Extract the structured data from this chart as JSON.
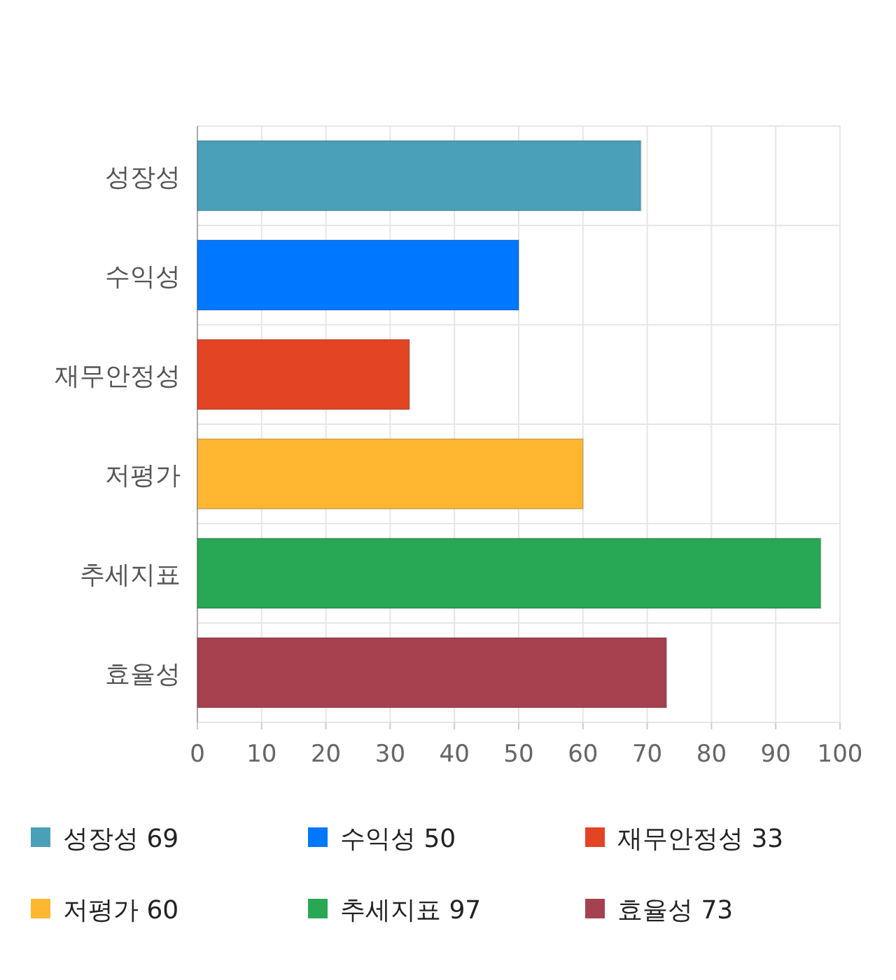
{
  "chart_data": {
    "type": "bar",
    "orientation": "horizontal",
    "categories": [
      "성장성",
      "수익성",
      "재무안정성",
      "저평가",
      "추세지표",
      "효율성"
    ],
    "series": [
      {
        "name": "성장성 69",
        "color": "#4aa0b9",
        "values": [
          69,
          null,
          null,
          null,
          null,
          null
        ]
      },
      {
        "name": "수익성 50",
        "color": "#0077ff",
        "values": [
          null,
          50,
          null,
          null,
          null,
          null
        ]
      },
      {
        "name": "재무안정성 33",
        "color": "#e24424",
        "values": [
          null,
          null,
          33,
          null,
          null,
          null
        ]
      },
      {
        "name": "저평가 60",
        "color": "#ffb732",
        "values": [
          null,
          null,
          null,
          60,
          null,
          null
        ]
      },
      {
        "name": "추세지표 97",
        "color": "#28a755",
        "values": [
          null,
          null,
          null,
          null,
          97,
          null
        ]
      },
      {
        "name": "효율성 73",
        "color": "#a6414f",
        "values": [
          null,
          null,
          null,
          null,
          null,
          73
        ]
      }
    ],
    "xlim": [
      0,
      100
    ],
    "xticks": [
      0,
      10,
      20,
      30,
      40,
      50,
      60,
      70,
      80,
      90,
      100
    ],
    "grid": true,
    "legend": "bottom"
  }
}
